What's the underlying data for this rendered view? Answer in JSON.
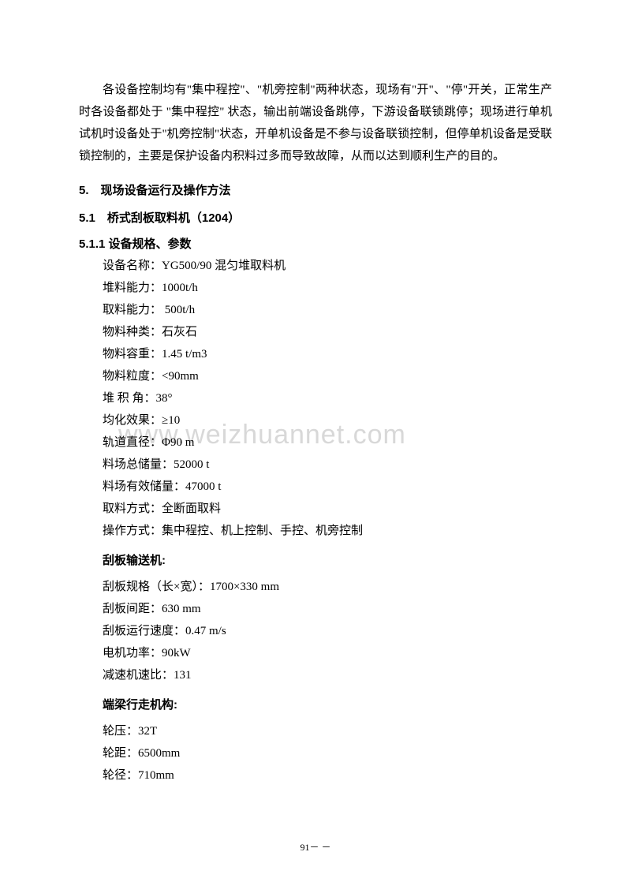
{
  "paragraph1": "各设备控制均有\"集中程控\"、\"机旁控制\"两种状态，现场有\"开\"、\"停\"开关，正常生产时各设备都处于 \"集中程控\" 状态，输出前端设备跳停，下游设备联锁跳停；现场进行单机试机时设备处于\"机旁控制\"状态，开单机设备是不参与设备联锁控制，但停单机设备是受联锁控制的，主要是保护设备内积料过多而导致故障，从而以达到顺利生产的目的。",
  "section5": "5.　现场设备运行及操作方法",
  "section51": "5.1　桥式刮板取料机（1204）",
  "section511": "5.1.1  设备规格、参数",
  "specs": {
    "name": "设备名称：YG500/90 混匀堆取料机",
    "stacking": "堆料能力：1000t/h",
    "reclaiming": "取料能力：  500t/h",
    "material": "物料种类：石灰石",
    "density": "物料容重：1.45 t/m3",
    "particle": "物料粒度：<90mm",
    "angle": "堆  积  角：38°",
    "blending": "均化效果：≥10",
    "track": "轨道直径：Φ90 m",
    "totalStorage": "料场总储量：52000 t",
    "effectiveStorage": "料场有效储量：47000 t",
    "reclaimMethod": "取料方式：全断面取料",
    "operation": "操作方式：集中程控、机上控制、手控、机旁控制"
  },
  "scraperHeading": "刮板输送机:",
  "scraper": {
    "spec": "刮板规格（长×宽）：1700×330 mm",
    "spacing": "刮板间距：630 mm",
    "speed": "刮板运行速度：0.47 m/s",
    "power": "电机功率：90kW",
    "ratio": "减速机速比：131"
  },
  "beamHeading": "端梁行走机构:",
  "beam": {
    "pressure": "轮压：32T",
    "distance": "轮距：6500mm",
    "diameter": "轮径：710mm"
  },
  "watermark": "www.weizhuannet.com",
  "pageNumber": "91－  －"
}
